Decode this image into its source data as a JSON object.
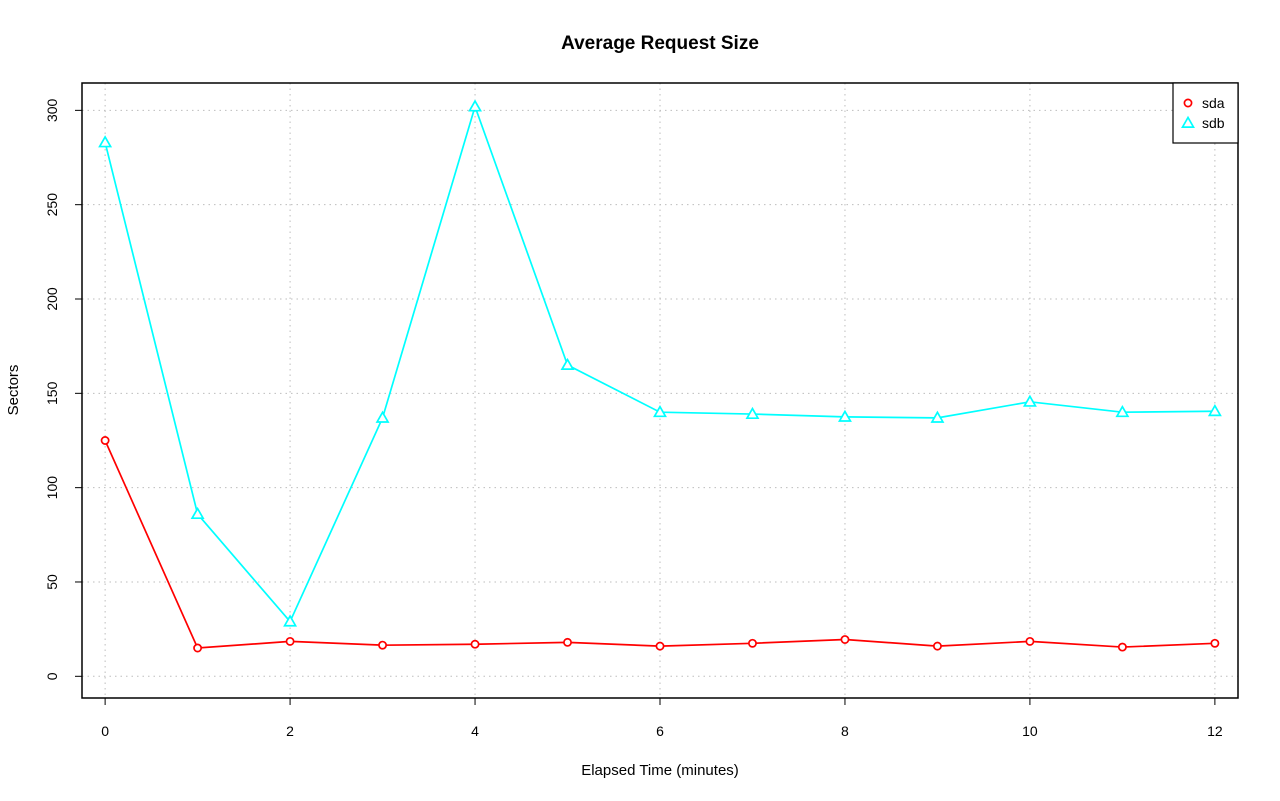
{
  "chart_data": {
    "type": "line",
    "title": "Average Request Size",
    "xlabel": "Elapsed Time (minutes)",
    "ylabel": "Sectors",
    "x": [
      0,
      1,
      2,
      3,
      4,
      5,
      6,
      7,
      8,
      9,
      10,
      11,
      12
    ],
    "xlim": [
      -0.25,
      12.25
    ],
    "ylim": [
      -11.5,
      314.5
    ],
    "xticks": [
      0,
      2,
      4,
      6,
      8,
      10,
      12
    ],
    "yticks": [
      0,
      50,
      100,
      150,
      200,
      250,
      300
    ],
    "grid": true,
    "legend_position": "top-right",
    "series": [
      {
        "name": "sda",
        "color": "#ff0000",
        "marker": "circle",
        "values": [
          125,
          15,
          18.5,
          16.5,
          17,
          18,
          16,
          17.5,
          19.5,
          16,
          18.5,
          15.5,
          17.5
        ]
      },
      {
        "name": "sdb",
        "color": "#00ffff",
        "marker": "triangle",
        "values": [
          283,
          86,
          29,
          137,
          302,
          165,
          140,
          139,
          137.5,
          137,
          145.5,
          140,
          140.5
        ]
      }
    ]
  }
}
